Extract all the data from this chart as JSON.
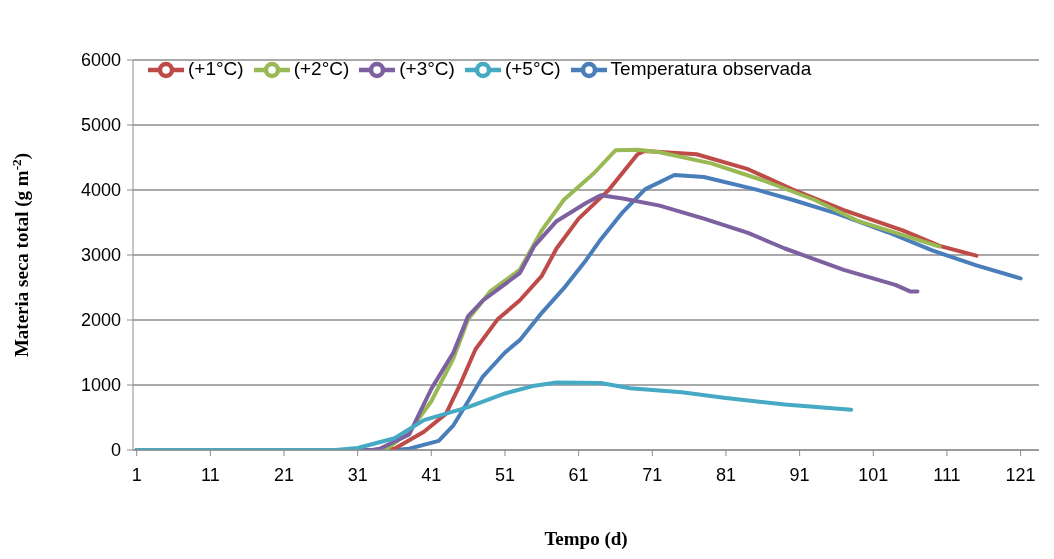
{
  "chart_data": {
    "type": "line",
    "xlabel": "Tempo (d)",
    "ylabel": "Materia seca total (g m$^{-2}$)",
    "xlim": [
      0.5,
      123.5
    ],
    "xticks": [
      1,
      11,
      21,
      31,
      41,
      51,
      61,
      71,
      81,
      91,
      101,
      111,
      121
    ],
    "ylim": [
      0,
      6000
    ],
    "yticks": [
      0,
      1000,
      2000,
      3000,
      4000,
      5000,
      6000
    ],
    "grid": "y",
    "legend": "top",
    "marker": "none",
    "line_style": "solid",
    "series": [
      {
        "name": "Temperatura observada",
        "color": "#4a7ebb",
        "x": [
          1,
          36,
          38,
          42,
          44,
          46,
          48,
          51,
          53,
          56,
          59,
          62,
          64,
          67,
          70,
          74,
          78,
          85,
          90,
          96,
          103,
          109,
          115,
          121
        ],
        "values": [
          0,
          0,
          20,
          140,
          380,
          750,
          1130,
          1500,
          1690,
          2110,
          2490,
          2920,
          3240,
          3660,
          4010,
          4230,
          4200,
          4010,
          3850,
          3640,
          3350,
          3070,
          2840,
          2640
        ]
      },
      {
        "name": "(+1°C)",
        "color": "#be4b48",
        "x": [
          1,
          34,
          36,
          40,
          43,
          45,
          47,
          50,
          53,
          56,
          58,
          61,
          65,
          69,
          70,
          77,
          84,
          90,
          97,
          105,
          110,
          115
        ],
        "values": [
          0,
          0,
          20,
          280,
          560,
          1030,
          1550,
          2010,
          2300,
          2680,
          3100,
          3560,
          3990,
          4550,
          4600,
          4550,
          4320,
          4010,
          3690,
          3380,
          3140,
          2990
        ]
      },
      {
        "name": "(+2°C)",
        "color": "#98b954",
        "x": [
          1,
          33,
          35,
          38,
          41,
          44,
          46,
          49,
          53,
          56,
          59,
          63,
          66,
          69,
          72,
          79,
          86,
          93,
          99,
          106,
          110
        ],
        "values": [
          0,
          0,
          20,
          280,
          750,
          1410,
          2010,
          2440,
          2770,
          3380,
          3850,
          4250,
          4610,
          4620,
          4580,
          4410,
          4150,
          3850,
          3520,
          3270,
          3130
        ]
      },
      {
        "name": "(+3°C)",
        "color": "#7d60a0",
        "x": [
          1,
          33,
          34,
          38,
          41,
          44,
          46,
          48,
          53,
          55,
          58,
          62,
          64,
          67,
          72,
          78,
          84,
          89,
          97,
          104,
          106,
          107
        ],
        "values": [
          0,
          0,
          20,
          240,
          940,
          1500,
          2060,
          2300,
          2720,
          3140,
          3520,
          3800,
          3920,
          3870,
          3760,
          3560,
          3340,
          3100,
          2770,
          2540,
          2440,
          2440
        ]
      },
      {
        "name": "(+5°C)",
        "color": "#46aac5",
        "x": [
          1,
          28,
          31,
          36,
          40,
          46,
          51,
          55,
          58,
          64,
          68,
          75,
          81,
          89,
          98
        ],
        "values": [
          0,
          0,
          30,
          180,
          460,
          660,
          870,
          990,
          1040,
          1030,
          950,
          890,
          800,
          700,
          620
        ]
      }
    ]
  }
}
